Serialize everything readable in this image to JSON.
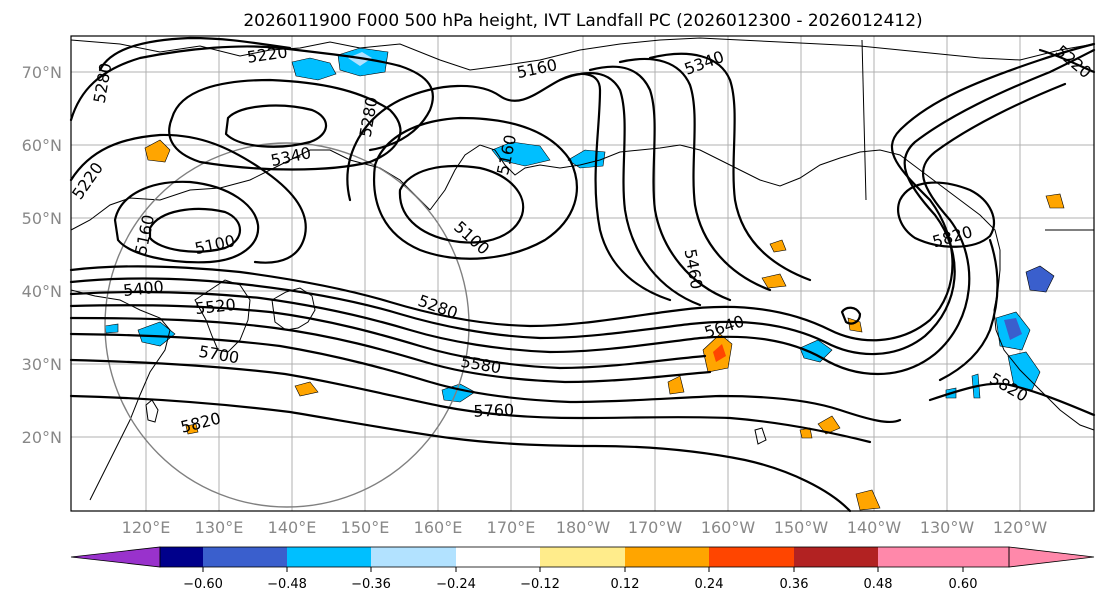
{
  "title": "2026011900 F000 500 hPa height, IVT Landfall PC (2026012300 - 2026012412)",
  "lat_labels": [
    "70°N",
    "60°N",
    "50°N",
    "40°N",
    "30°N",
    "20°N"
  ],
  "lon_labels": [
    "120°E",
    "130°E",
    "140°E",
    "150°E",
    "160°E",
    "170°E",
    "180°W",
    "170°W",
    "160°W",
    "150°W",
    "140°W",
    "130°W",
    "120°W"
  ],
  "contour_labels": [
    "5220",
    "5280",
    "5160",
    "5340",
    "5220",
    "5280",
    "5340",
    "5220",
    "5160",
    "5100",
    "5100",
    "5160",
    "5460",
    "5400",
    "5520",
    "5280",
    "5700",
    "5580",
    "5640",
    "5820",
    "5760",
    "5820",
    "5820"
  ],
  "colorbar": {
    "tick_labels": [
      "−0.60",
      "−0.48",
      "−0.36",
      "−0.24",
      "−0.12",
      "0.12",
      "0.24",
      "0.36",
      "0.48",
      "0.60"
    ],
    "colors": [
      "#9932cc",
      "#00008b",
      "#3a5fcd",
      "#00bfff",
      "#b2e2ff",
      "#ffffff",
      "#ffec8b",
      "#ffa500",
      "#ff4500",
      "#b22222",
      "#ff88aa"
    ]
  },
  "colors": {
    "contour": "#000000",
    "grid": "#b0b0b0",
    "axis_label": "#888888",
    "circle": "#808080"
  }
}
